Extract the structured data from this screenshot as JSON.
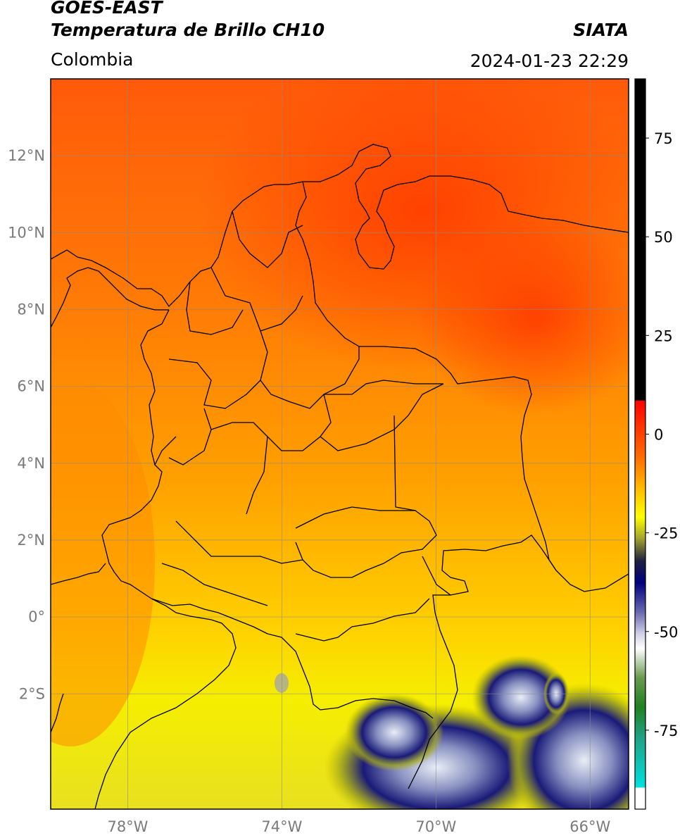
{
  "header": {
    "satellite": "GOES-EAST",
    "product": "Temperatura de Brillo CH10",
    "region": "Colombia",
    "organization": "SIATA",
    "datetime": "2024-01-23 22:29"
  },
  "map": {
    "lon_range": [
      -80,
      -65
    ],
    "lat_range": [
      -5,
      14
    ],
    "lat_ticks": [
      {
        "value": 12,
        "label": "12°N"
      },
      {
        "value": 10,
        "label": "10°N"
      },
      {
        "value": 8,
        "label": "8°N"
      },
      {
        "value": 6,
        "label": "6°N"
      },
      {
        "value": 4,
        "label": "4°N"
      },
      {
        "value": 2,
        "label": "2°N"
      },
      {
        "value": 0,
        "label": "0°"
      },
      {
        "value": -2,
        "label": "2°S"
      }
    ],
    "lon_ticks": [
      {
        "value": -78,
        "label": "78°W"
      },
      {
        "value": -74,
        "label": "74°W"
      },
      {
        "value": -70,
        "label": "70°W"
      },
      {
        "value": -66,
        "label": "66°W"
      }
    ],
    "grid": true
  },
  "colorbar": {
    "range": [
      -95,
      90
    ],
    "ticks": [
      {
        "value": 75,
        "label": "75"
      },
      {
        "value": 50,
        "label": "50"
      },
      {
        "value": 25,
        "label": "25"
      },
      {
        "value": 0,
        "label": "0"
      },
      {
        "value": -25,
        "label": "-25"
      },
      {
        "value": -50,
        "label": "-50"
      },
      {
        "value": -75,
        "label": "-75"
      }
    ]
  }
}
